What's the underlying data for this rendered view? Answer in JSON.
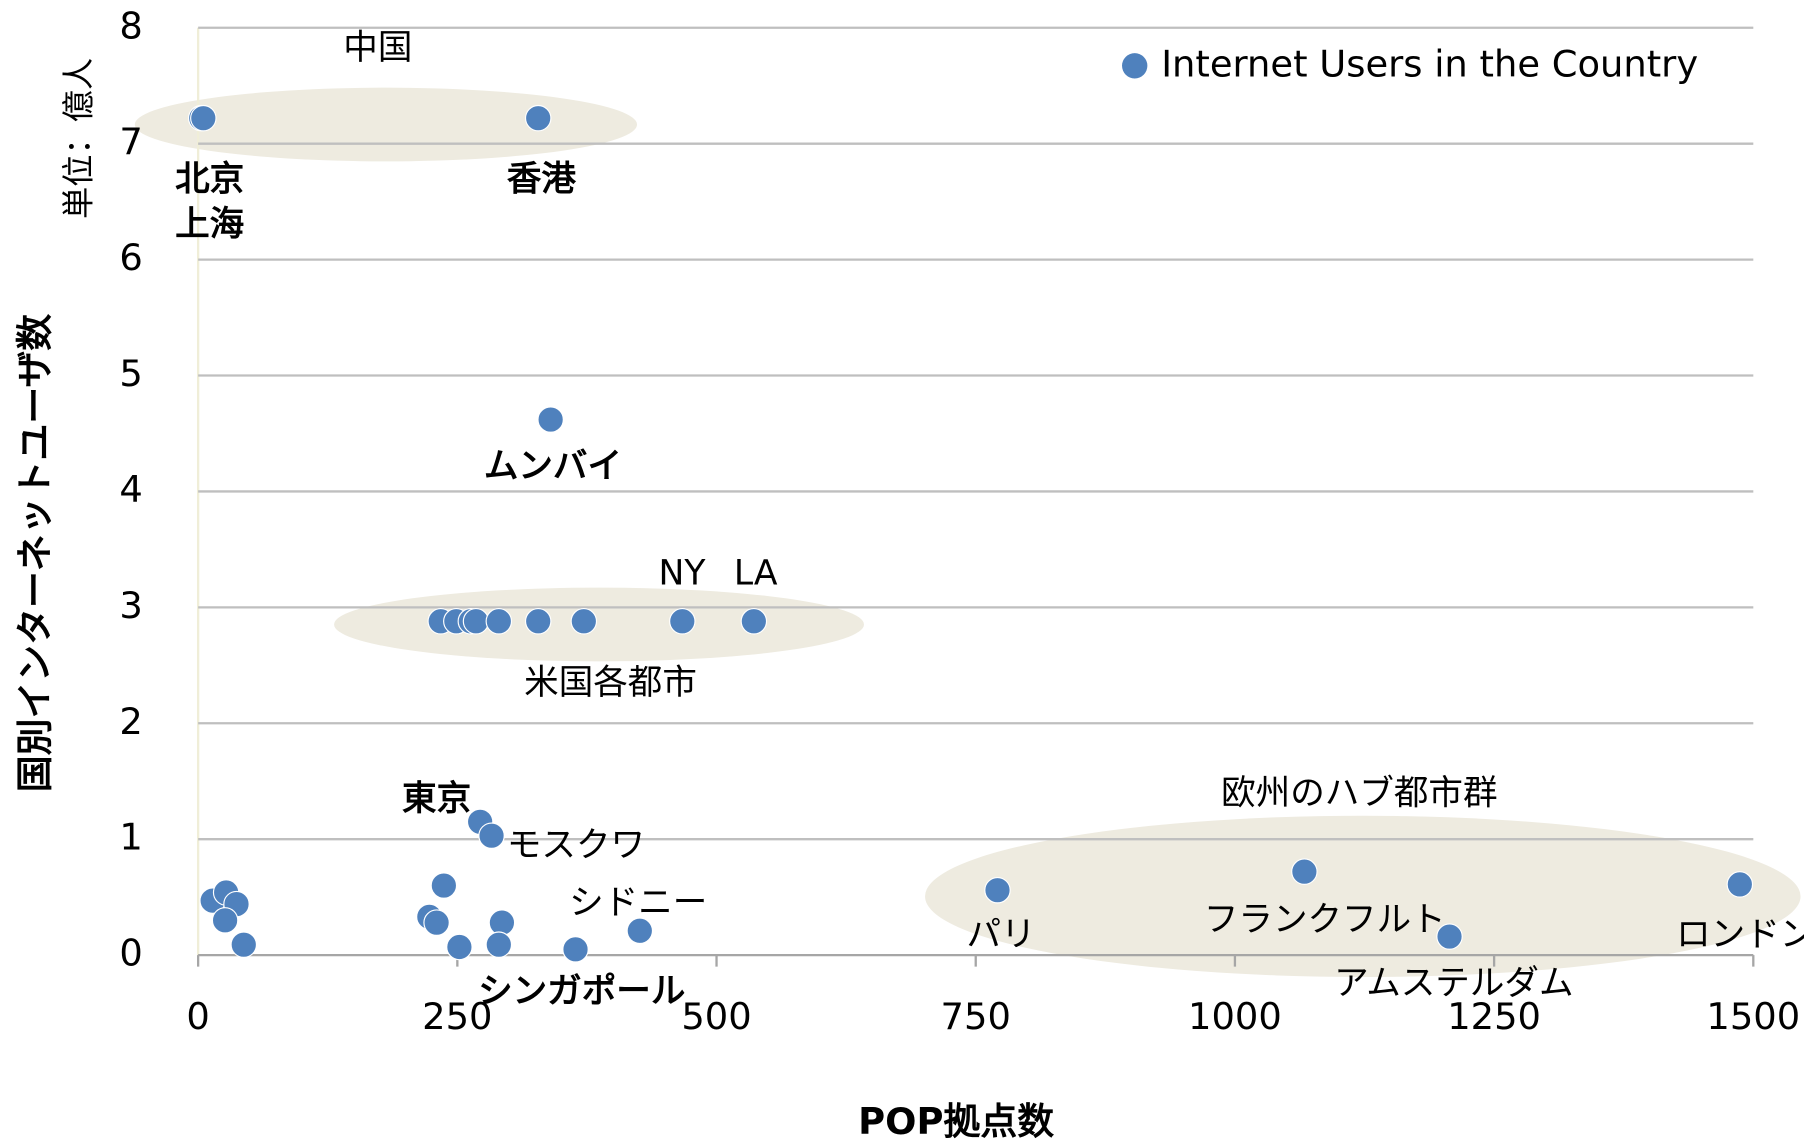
{
  "chart_data": {
    "type": "scatter",
    "x_label": "POP拠点数",
    "y_label": "国別インターネットユーザ数",
    "y_unit_label": "単位：億人",
    "series": [
      {
        "name": "Internet Users in the Country",
        "color": "#4f81bd",
        "x": [
          3,
          5,
          328,
          340,
          234,
          249,
          263,
          268,
          290,
          328,
          372,
          467,
          536,
          272,
          283,
          14,
          27,
          37,
          26,
          44,
          237,
          223,
          230,
          252,
          293,
          290,
          364,
          426,
          771,
          1067,
          1207,
          1487
        ],
        "values": [
          7.22,
          7.22,
          7.22,
          4.62,
          2.88,
          2.88,
          2.88,
          2.88,
          2.88,
          2.88,
          2.88,
          2.88,
          2.88,
          1.15,
          1.03,
          0.47,
          0.54,
          0.44,
          0.3,
          0.09,
          0.6,
          0.33,
          0.28,
          0.07,
          0.28,
          0.09,
          0.05,
          0.21,
          0.56,
          0.72,
          0.16,
          0.61
        ]
      }
    ],
    "xlim": [
      0,
      1500
    ],
    "xticks": [
      0,
      250,
      500,
      750,
      1000,
      1250,
      1500
    ],
    "ylim": [
      0,
      8
    ],
    "yticks": [
      0,
      1,
      2,
      3,
      4,
      5,
      6,
      7,
      8
    ],
    "grid": true,
    "legend": "upper right",
    "annotations": [
      "中国",
      "北京",
      "上海",
      "香港",
      "ムンバイ",
      "NY",
      "LA",
      "米国各都市",
      "東京",
      "モスクワ",
      "シドニー",
      "シンガポール",
      "欧州のハブ都市群",
      "パリ",
      "フランクフルト",
      "アムステルダム",
      "ロンドン"
    ]
  }
}
